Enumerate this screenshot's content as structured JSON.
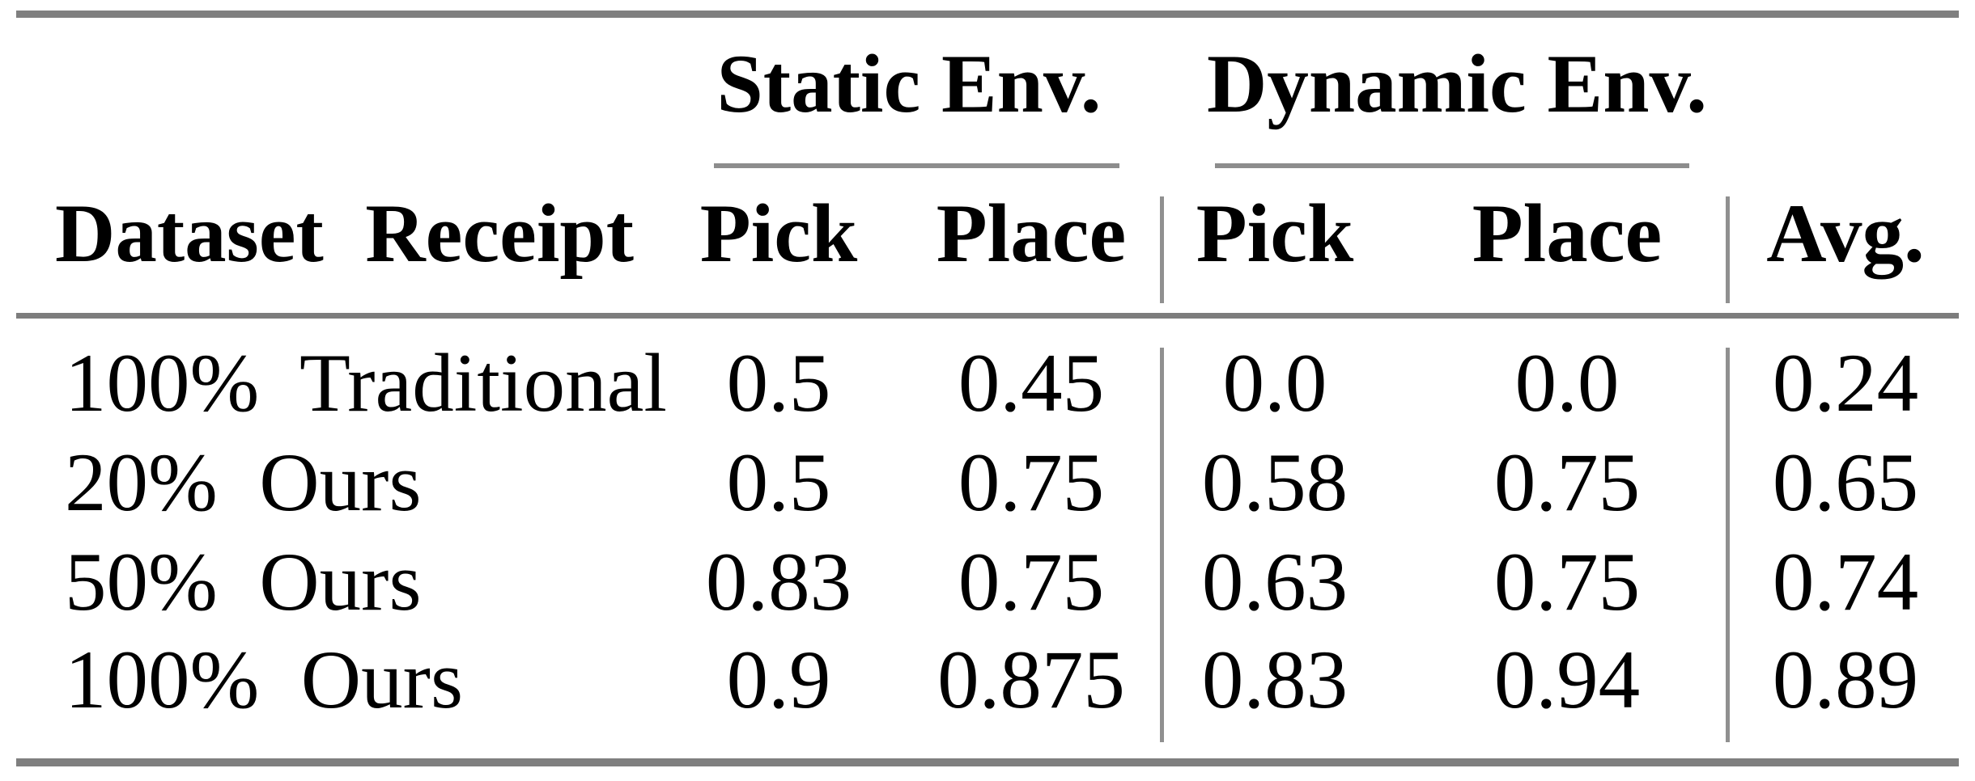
{
  "table": {
    "groups": {
      "static": "Static Env.",
      "dynamic": "Dynamic Env."
    },
    "columns": {
      "label": "Dataset Receipt",
      "static_pick": "Pick",
      "static_place": "Place",
      "dynamic_pick": "Pick",
      "dynamic_place": "Place",
      "avg": "Avg."
    },
    "rows": [
      {
        "label": "100% Traditional",
        "values": [
          "0.5",
          "0.45",
          "0.0",
          "0.0",
          "0.24"
        ]
      },
      {
        "label": "20% Ours",
        "values": [
          "0.5",
          "0.75",
          "0.58",
          "0.75",
          "0.65"
        ]
      },
      {
        "label": "50% Ours",
        "values": [
          "0.83",
          "0.75",
          "0.63",
          "0.75",
          "0.74"
        ]
      },
      {
        "label": "100% Ours",
        "values": [
          "0.9",
          "0.875",
          "0.83",
          "0.94",
          "0.89"
        ]
      }
    ],
    "rule_color": "#7f7f7f",
    "divider_color": "#909090",
    "text_color": "#000000"
  }
}
